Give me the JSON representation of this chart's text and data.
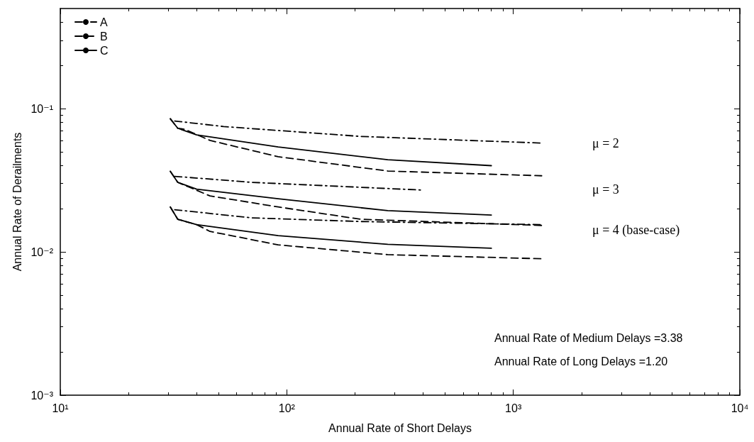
{
  "chart_data": {
    "type": "line",
    "xlabel": "Annual Rate of Short Delays",
    "ylabel": "Annual Rate of Derailments",
    "log": "xy",
    "grid": false,
    "legend": "top left",
    "marker": "none",
    "xlim": [
      10,
      10000
    ],
    "ylim": [
      0.001,
      0.5
    ],
    "xticks": [
      {
        "value": 10,
        "label": "10¹"
      },
      {
        "value": 100,
        "label": "10²"
      },
      {
        "value": 1000,
        "label": "10³"
      },
      {
        "value": 10000,
        "label": "10⁴"
      }
    ],
    "yticks": [
      {
        "value": 0.001,
        "label": "10⁻³"
      },
      {
        "value": 0.01,
        "label": "10⁻²"
      },
      {
        "value": 0.1,
        "label": "10⁻¹"
      }
    ],
    "series": [
      {
        "name": "A",
        "color": "#000000",
        "line_style": "dashdot",
        "x": [
          32,
          52.6,
          212,
          1334
        ],
        "values": [
          0.082,
          0.075,
          0.064,
          0.0575
        ]
      },
      {
        "name": "B",
        "color": "#000000",
        "line_style": "dashed",
        "x": [
          30.6,
          33,
          35.4,
          45.8,
          91.6,
          279,
          1334
        ],
        "values": [
          0.085,
          0.073,
          0.0718,
          0.06,
          0.0462,
          0.0367,
          0.034
        ]
      },
      {
        "name": "C",
        "color": "#000000",
        "line_style": "solid",
        "x": [
          30.6,
          33,
          40,
          91.6,
          279,
          800
        ],
        "values": [
          0.085,
          0.073,
          0.0656,
          0.054,
          0.044,
          0.04
        ]
      },
      {
        "color": "#000000",
        "line_style": "dashdot",
        "x": [
          32,
          69.7,
          400
        ],
        "values": [
          0.0337,
          0.0306,
          0.027
        ]
      },
      {
        "color": "#000000",
        "line_style": "dashed",
        "x": [
          30.6,
          33,
          45.8,
          91.6,
          212,
          1334
        ],
        "values": [
          0.0365,
          0.0306,
          0.0246,
          0.0206,
          0.0169,
          0.0153
        ]
      },
      {
        "color": "#000000",
        "line_style": "solid",
        "x": [
          30.6,
          33,
          40,
          91.6,
          279,
          800
        ],
        "values": [
          0.0365,
          0.0306,
          0.0274,
          0.0235,
          0.0194,
          0.0181
        ]
      },
      {
        "color": "#000000",
        "line_style": "dashdot",
        "x": [
          32,
          69.7,
          212,
          1334
        ],
        "values": [
          0.0197,
          0.0173,
          0.0163,
          0.0155
        ]
      },
      {
        "color": "#000000",
        "line_style": "dashed",
        "x": [
          30.6,
          33,
          40,
          45.8,
          91.6,
          279,
          1334
        ],
        "values": [
          0.0206,
          0.0169,
          0.0155,
          0.0139,
          0.0112,
          0.00957,
          0.00896
        ]
      },
      {
        "color": "#000000",
        "line_style": "solid",
        "x": [
          30.6,
          33,
          40,
          91.6,
          279,
          800
        ],
        "values": [
          0.0206,
          0.0169,
          0.0155,
          0.013,
          0.0113,
          0.0106
        ]
      }
    ],
    "annotations": [
      "μ = 2",
      "μ = 3",
      "μ = 4 (base-case)",
      "Annual Rate of Medium Delays =3.38",
      "Annual Rate of Long Delays =1.20"
    ]
  }
}
